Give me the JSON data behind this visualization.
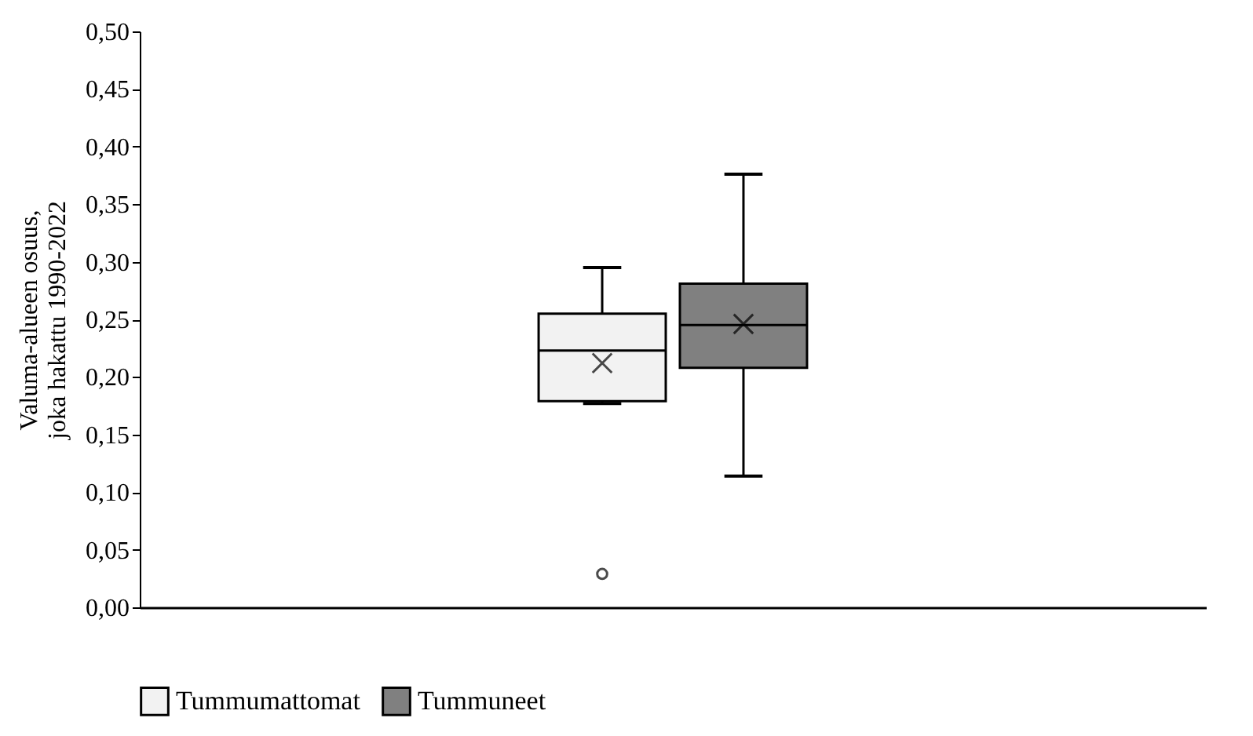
{
  "chart_data": {
    "type": "box",
    "ylabel": "Valuma-alueen osuus,\njoka hakattu 1990-2022",
    "categories": [
      null
    ],
    "tick_labels": "y",
    "legend": "bottom",
    "grid": false,
    "ylim": [
      0,
      0.5
    ],
    "yticks": [
      {
        "value": 0,
        "label": "0,00"
      },
      {
        "value": 0.05,
        "label": "0,05"
      },
      {
        "value": 0.1,
        "label": "0,10"
      },
      {
        "value": 0.15,
        "label": "0,15"
      },
      {
        "value": 0.2,
        "label": "0,20"
      },
      {
        "value": 0.25,
        "label": "0,25"
      },
      {
        "value": 0.3,
        "label": "0,30"
      },
      {
        "value": 0.35,
        "label": "0,35"
      },
      {
        "value": 0.4,
        "label": "0,40"
      },
      {
        "value": 0.45,
        "label": "0,45"
      },
      {
        "value": 0.5,
        "label": "0,50"
      }
    ],
    "series": [
      {
        "name": "Tummumattomat",
        "color": "#f2f2f2",
        "boxes": [
          {
            "low": 0.177,
            "q1": 0.179,
            "median": 0.223,
            "q3": 0.255,
            "high": 0.295,
            "mean": 0.212,
            "outliers": [
              0.029
            ]
          }
        ]
      },
      {
        "name": "Tummuneet",
        "color": "#808080",
        "boxes": [
          {
            "low": 0.114,
            "q1": 0.208,
            "median": 0.245,
            "q3": 0.281,
            "high": 0.376,
            "mean": 0.246
          }
        ]
      }
    ]
  }
}
